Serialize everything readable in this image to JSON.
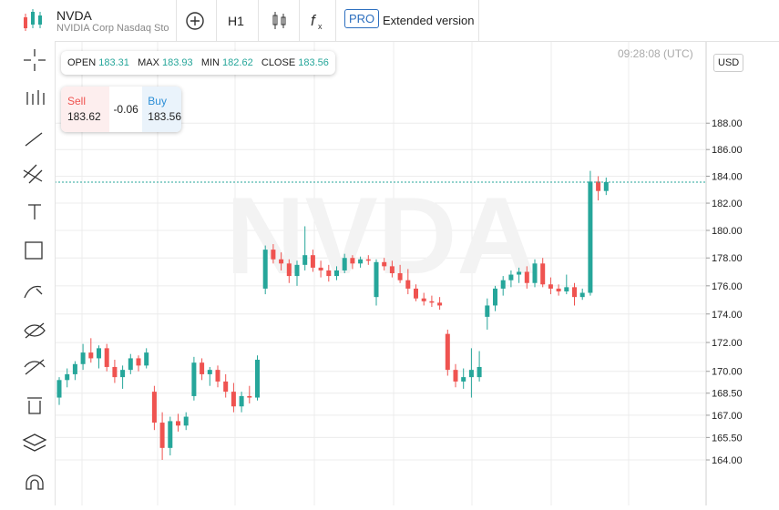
{
  "header": {
    "symbol": "NVDA",
    "name": "NVIDIA Corp Nasdaq Sto",
    "timeframe": "H1",
    "pro": "PRO",
    "extended": "Extended version"
  },
  "ohlc": {
    "open_label": "OPEN",
    "open": 183.31,
    "max_label": "MAX",
    "max": 183.93,
    "min_label": "MIN",
    "min": 182.62,
    "close_label": "CLOSE",
    "close": 183.56
  },
  "quote": {
    "sell_label": "Sell",
    "sell": 183.62,
    "change": -0.06,
    "buy_label": "Buy",
    "buy": 183.56
  },
  "time": "09:28:08 (UTC)",
  "currency": "USD",
  "watermark": "NVDA",
  "chart_data": {
    "type": "candlestick",
    "log_scale": true,
    "grid": true,
    "up_color": "#26a69a",
    "down_color": "#ef5350",
    "last_price": 183.56,
    "ylim": [
      161,
      194.3
    ],
    "yticks": [
      {
        "value": 164,
        "label": "164.00"
      },
      {
        "value": 165.5,
        "label": "165.50"
      },
      {
        "value": 167,
        "label": "167.00"
      },
      {
        "value": 168.5,
        "label": "168.50"
      },
      {
        "value": 170,
        "label": "170.00"
      },
      {
        "value": 172,
        "label": "172.00"
      },
      {
        "value": 174,
        "label": "174.00"
      },
      {
        "value": 176,
        "label": "176.00"
      },
      {
        "value": 178,
        "label": "178.00"
      },
      {
        "value": 180,
        "label": "180.00"
      },
      {
        "value": 182,
        "label": "182.00"
      },
      {
        "value": 184,
        "label": "184.00"
      },
      {
        "value": 186,
        "label": "186.00"
      },
      {
        "value": 188,
        "label": "188.00"
      }
    ],
    "open": [
      168.2,
      169.4,
      169.8,
      170.5,
      171.3,
      170.9,
      171.6,
      170.3,
      169.6,
      170.1,
      170.9,
      170.4,
      168.6,
      166.5,
      164.8,
      166.6,
      166.3,
      168.3,
      170.6,
      169.8,
      170.1,
      169.3,
      168.6,
      167.6,
      168.3,
      168.2,
      175.8,
      178.6,
      177.9,
      177.6,
      176.7,
      177.5,
      178.2,
      177.3,
      177.1,
      176.7,
      177.1,
      178.0,
      177.6,
      177.9,
      175.2,
      177.7,
      177.4,
      176.9,
      176.4,
      175.8,
      175.1,
      174.9,
      174.8,
      172.6,
      170.1,
      169.3,
      169.6,
      169.6,
      173.8,
      174.6,
      175.8,
      176.4,
      176.8,
      177.0,
      176.2,
      177.6,
      176.1,
      175.8,
      175.6,
      175.9,
      175.2,
      175.5,
      183.6,
      182.9
    ],
    "high": [
      169.6,
      170.2,
      170.7,
      171.9,
      172.3,
      171.8,
      171.9,
      170.8,
      170.4,
      171.2,
      171.1,
      171.6,
      169.0,
      167.2,
      166.9,
      167.1,
      167.2,
      171.0,
      170.9,
      170.3,
      170.4,
      169.8,
      169.2,
      168.6,
      169.0,
      171.1,
      178.9,
      179.0,
      178.4,
      177.9,
      177.8,
      180.3,
      178.6,
      177.8,
      177.5,
      177.4,
      178.3,
      178.2,
      178.1,
      178.2,
      177.9,
      178.0,
      177.8,
      177.5,
      177.2,
      176.1,
      175.5,
      175.3,
      175.2,
      172.9,
      170.5,
      170.2,
      171.6,
      171.4,
      175.1,
      176.0,
      176.7,
      177.1,
      177.3,
      177.4,
      177.9,
      178.0,
      176.6,
      176.1,
      176.8,
      176.2,
      175.8,
      184.4,
      184.0,
      183.9
    ],
    "low": [
      167.7,
      168.9,
      169.4,
      170.1,
      170.6,
      170.2,
      170.0,
      169.2,
      168.8,
      169.8,
      170.0,
      170.2,
      166.0,
      164.0,
      164.3,
      165.9,
      166.0,
      168.0,
      169.4,
      169.0,
      168.9,
      168.2,
      167.2,
      167.2,
      167.8,
      168.0,
      175.4,
      177.6,
      177.1,
      176.2,
      176.0,
      177.1,
      177.0,
      176.6,
      176.3,
      176.4,
      176.9,
      177.2,
      177.3,
      177.5,
      174.6,
      177.1,
      176.6,
      176.2,
      175.4,
      174.9,
      174.6,
      174.5,
      174.3,
      169.7,
      168.9,
      168.8,
      168.2,
      169.3,
      172.9,
      174.2,
      175.3,
      175.9,
      176.2,
      175.8,
      175.9,
      175.9,
      175.4,
      175.3,
      175.4,
      174.6,
      175.0,
      175.3,
      182.2,
      182.6
    ],
    "close": [
      169.4,
      169.8,
      170.5,
      171.3,
      170.9,
      171.6,
      170.3,
      169.6,
      170.1,
      170.9,
      170.4,
      171.3,
      166.5,
      164.8,
      166.6,
      166.3,
      166.9,
      170.6,
      169.8,
      170.1,
      169.3,
      168.6,
      167.6,
      168.3,
      168.2,
      170.8,
      178.6,
      177.9,
      177.6,
      176.7,
      177.5,
      178.2,
      177.3,
      177.1,
      176.7,
      177.1,
      178.0,
      177.6,
      177.9,
      177.8,
      177.7,
      177.4,
      176.9,
      176.4,
      175.8,
      175.1,
      174.9,
      174.8,
      174.6,
      170.1,
      169.3,
      169.6,
      170.1,
      170.3,
      174.6,
      175.8,
      176.4,
      176.8,
      177.0,
      176.2,
      177.6,
      176.1,
      175.8,
      175.6,
      175.9,
      175.2,
      175.5,
      183.6,
      182.9,
      183.56
    ]
  }
}
